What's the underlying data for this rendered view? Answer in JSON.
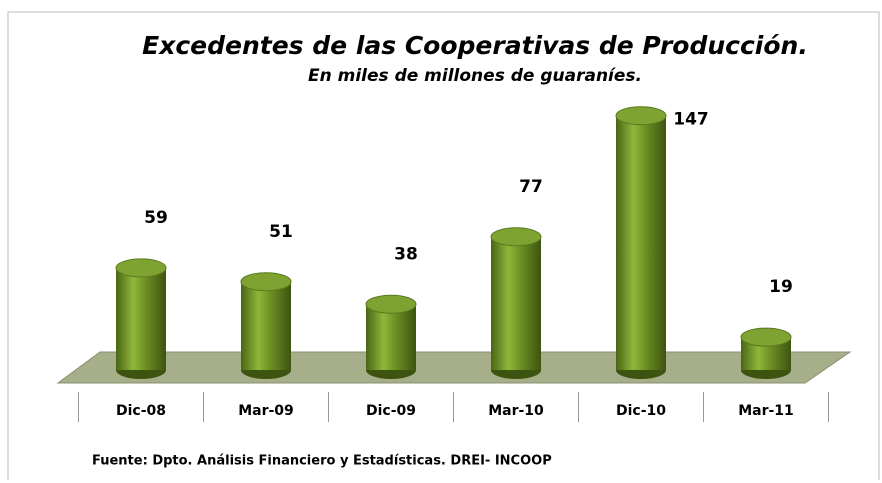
{
  "chart_data": {
    "type": "bar",
    "title": "Excedentes de las Cooperativas de Producción.",
    "subtitle": "En miles de millones de guaraníes.",
    "categories": [
      "Dic-08",
      "Mar-09",
      "Dic-09",
      "Mar-10",
      "Dic-10",
      "Mar-11"
    ],
    "values": [
      59,
      51,
      38,
      77,
      147,
      19
    ],
    "color": "#6b8e23",
    "source": "Fuente: Dpto. Análisis Financiero y Estadísticas. DREI- INCOOP"
  }
}
